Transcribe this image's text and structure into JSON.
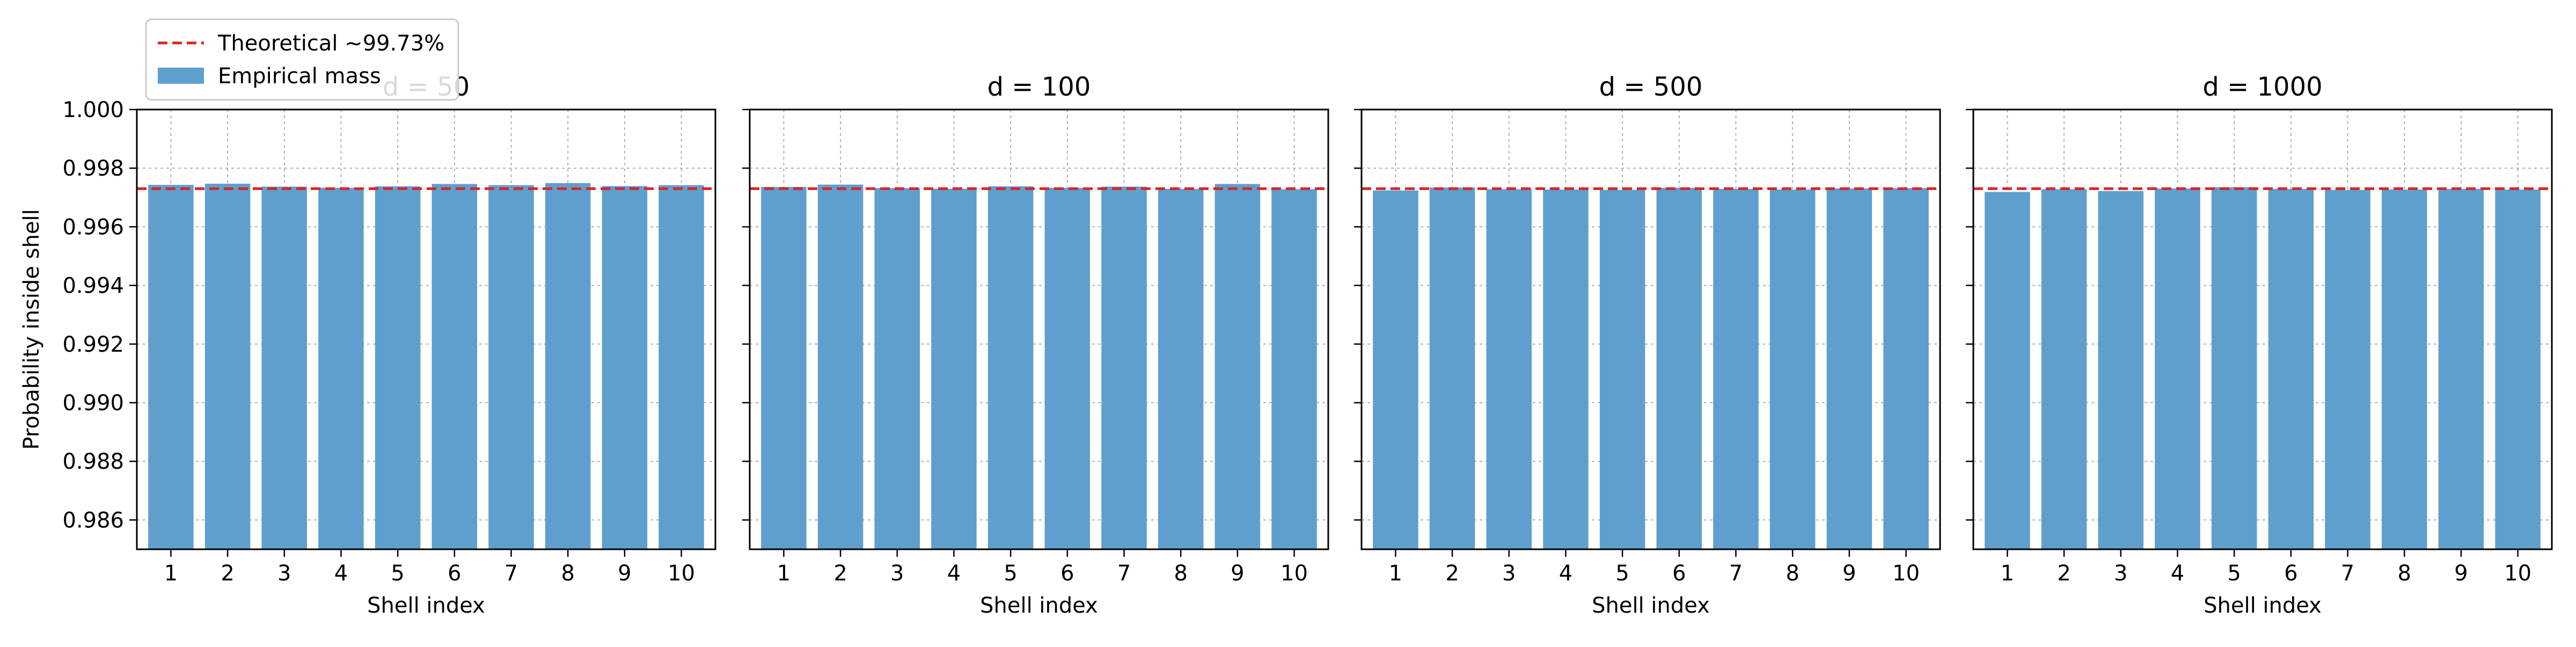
{
  "chart_data": [
    {
      "type": "bar",
      "title": "d = 50",
      "xlabel": "Shell index",
      "ylabel": "Probability inside shell",
      "categories": [
        "1",
        "2",
        "3",
        "4",
        "5",
        "6",
        "7",
        "8",
        "9",
        "10"
      ],
      "series": [
        {
          "name": "Empirical mass",
          "values": [
            0.99743,
            0.99747,
            0.99737,
            0.99733,
            0.99738,
            0.99746,
            0.99742,
            0.99749,
            0.99739,
            0.99742
          ]
        }
      ],
      "reference_line": {
        "name": "Theoretical ~99.73%",
        "value": 0.9973,
        "color": "#d62728",
        "style": "dashed"
      },
      "ylim": [
        0.985,
        1.0
      ],
      "yticks": [
        "0.986",
        "0.988",
        "0.990",
        "0.992",
        "0.994",
        "0.996",
        "0.998",
        "1.000"
      ],
      "grid": true,
      "bar_color": "#5f9fcd",
      "legend_placement": "upper-left, above first panel"
    },
    {
      "type": "bar",
      "title": "d = 100",
      "xlabel": "Shell index",
      "ylabel": "",
      "categories": [
        "1",
        "2",
        "3",
        "4",
        "5",
        "6",
        "7",
        "8",
        "9",
        "10"
      ],
      "series": [
        {
          "name": "Empirical mass",
          "values": [
            0.99736,
            0.99744,
            0.99732,
            0.9973,
            0.99738,
            0.99733,
            0.99737,
            0.99729,
            0.99746,
            0.99728
          ]
        }
      ],
      "reference_line": {
        "name": "Theoretical ~99.73%",
        "value": 0.9973,
        "color": "#d62728",
        "style": "dashed"
      },
      "ylim": [
        0.985,
        1.0
      ],
      "grid": true,
      "bar_color": "#5f9fcd"
    },
    {
      "type": "bar",
      "title": "d = 500",
      "xlabel": "Shell index",
      "ylabel": "",
      "categories": [
        "1",
        "2",
        "3",
        "4",
        "5",
        "6",
        "7",
        "8",
        "9",
        "10"
      ],
      "series": [
        {
          "name": "Empirical mass",
          "values": [
            0.99724,
            0.99734,
            0.99728,
            0.99727,
            0.99726,
            0.99733,
            0.99729,
            0.99727,
            0.99731,
            0.99732
          ]
        }
      ],
      "reference_line": {
        "name": "Theoretical ~99.73%",
        "value": 0.9973,
        "color": "#d62728",
        "style": "dashed"
      },
      "ylim": [
        0.985,
        1.0
      ],
      "grid": true,
      "bar_color": "#5f9fcd"
    },
    {
      "type": "bar",
      "title": "d = 1000",
      "xlabel": "Shell index",
      "ylabel": "",
      "categories": [
        "1",
        "2",
        "3",
        "4",
        "5",
        "6",
        "7",
        "8",
        "9",
        "10"
      ],
      "series": [
        {
          "name": "Empirical mass",
          "values": [
            0.99719,
            0.99728,
            0.99722,
            0.99731,
            0.99735,
            0.99729,
            0.99726,
            0.99727,
            0.99729,
            0.99727
          ]
        }
      ],
      "reference_line": {
        "name": "Theoretical ~99.73%",
        "value": 0.9973,
        "color": "#d62728",
        "style": "dashed"
      },
      "ylim": [
        0.985,
        1.0
      ],
      "grid": true,
      "bar_color": "#5f9fcd"
    }
  ],
  "legend": {
    "items": [
      {
        "label": "Theoretical ~99.73%",
        "kind": "dashed-line",
        "color": "#d62728"
      },
      {
        "label": "Empirical mass",
        "kind": "bar",
        "color": "#5f9fcd"
      }
    ]
  }
}
